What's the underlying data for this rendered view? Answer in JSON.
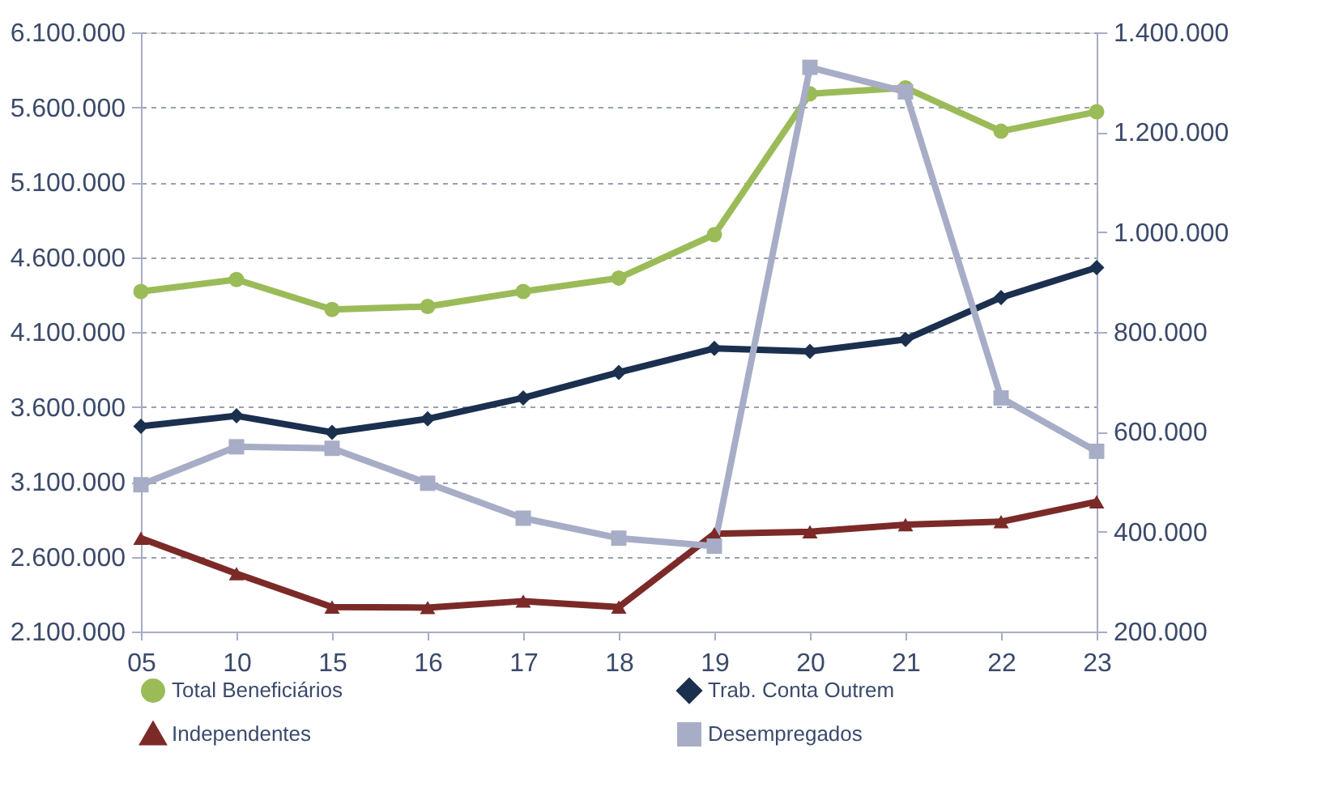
{
  "chart_data": {
    "type": "line",
    "categories": [
      "05",
      "10",
      "15",
      "16",
      "17",
      "18",
      "19",
      "20",
      "21",
      "22",
      "23"
    ],
    "series": [
      {
        "name": "Total Beneficiários",
        "color": "#9bbb59",
        "marker": "circle",
        "axis": "y",
        "values": [
          4370000,
          4450000,
          4250000,
          4270000,
          4370000,
          4460000,
          4750000,
          5690000,
          5730000,
          5440000,
          5570000
        ]
      },
      {
        "name": "Trab. Conta Outrem",
        "color": "#1b2f4e",
        "marker": "diamond",
        "axis": "y",
        "values": [
          3470000,
          3540000,
          3430000,
          3520000,
          3660000,
          3830000,
          3990000,
          3970000,
          4050000,
          4330000,
          4530000
        ]
      },
      {
        "name": "Independentes",
        "color": "#7b2a28",
        "marker": "triangle",
        "axis": "y2",
        "values": [
          387000,
          316000,
          249000,
          248000,
          261000,
          249000,
          396000,
          400000,
          414000,
          420000,
          460000
        ]
      },
      {
        "name": "Desempregados",
        "color": "#a7adc6",
        "marker": "square",
        "axis": "y2",
        "values": [
          494000,
          570000,
          567000,
          497000,
          427000,
          387000,
          371000,
          1330000,
          1281000,
          668000,
          561000
        ]
      }
    ],
    "ylim": [
      2100000,
      6100000
    ],
    "yticks": [
      {
        "value": 2100000,
        "label": "2.100.000"
      },
      {
        "value": 2600000,
        "label": "2.600.000"
      },
      {
        "value": 3100000,
        "label": "3.100.000"
      },
      {
        "value": 3600000,
        "label": "3.600.000"
      },
      {
        "value": 4100000,
        "label": "4.100.000"
      },
      {
        "value": 4600000,
        "label": "4.600.000"
      },
      {
        "value": 5100000,
        "label": "5.100.000"
      },
      {
        "value": 5600000,
        "label": "5.600.000"
      },
      {
        "value": 6100000,
        "label": "6.100.000"
      }
    ],
    "y2lim": [
      200000,
      1400000
    ],
    "y2ticks": [
      {
        "value": 200000,
        "label": "200.000"
      },
      {
        "value": 400000,
        "label": "400.000"
      },
      {
        "value": 600000,
        "label": "600.000"
      },
      {
        "value": 800000,
        "label": "800.000"
      },
      {
        "value": 1000000,
        "label": "1.000.000"
      },
      {
        "value": 1200000,
        "label": "1.200.000"
      },
      {
        "value": 1400000,
        "label": "1.400.000"
      }
    ],
    "grid": "y",
    "legend": "bottom",
    "line_style": "solid"
  }
}
